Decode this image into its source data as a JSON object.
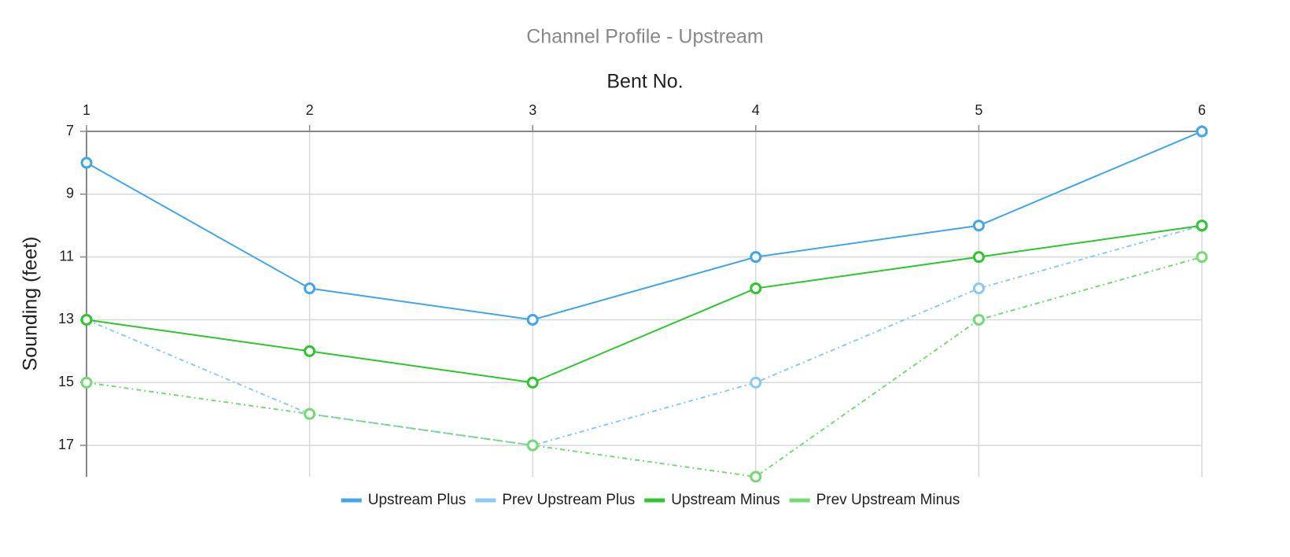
{
  "chart_data": {
    "type": "line",
    "title": "Channel Profile - Upstream",
    "x_label": "Bent No.",
    "y_label": "Sounding (feet)",
    "x": [
      1,
      2,
      3,
      4,
      5,
      6
    ],
    "xlim": [
      1,
      6
    ],
    "ylim": [
      7,
      18
    ],
    "yticks": [
      7,
      9,
      11,
      13,
      15,
      17
    ],
    "y_inverted": true,
    "x_axis_position": "top",
    "grid": true,
    "legend": "bottom",
    "series": [
      {
        "name": "Upstream Plus",
        "color": "#42a5e8",
        "line_style": "solid",
        "values": [
          8,
          12,
          13,
          11,
          10,
          7
        ]
      },
      {
        "name": "Prev Upstream Plus",
        "color": "#8cc9f0",
        "line_style": "dashdot",
        "values": [
          13,
          16,
          17,
          15,
          12,
          10
        ]
      },
      {
        "name": "Upstream Minus",
        "color": "#2ec52e",
        "line_style": "solid",
        "values": [
          13,
          14,
          15,
          12,
          11,
          10
        ]
      },
      {
        "name": "Prev Upstream Minus",
        "color": "#76d876",
        "line_style": "dashdot",
        "values": [
          15,
          16,
          17,
          18,
          13,
          11
        ]
      }
    ]
  }
}
